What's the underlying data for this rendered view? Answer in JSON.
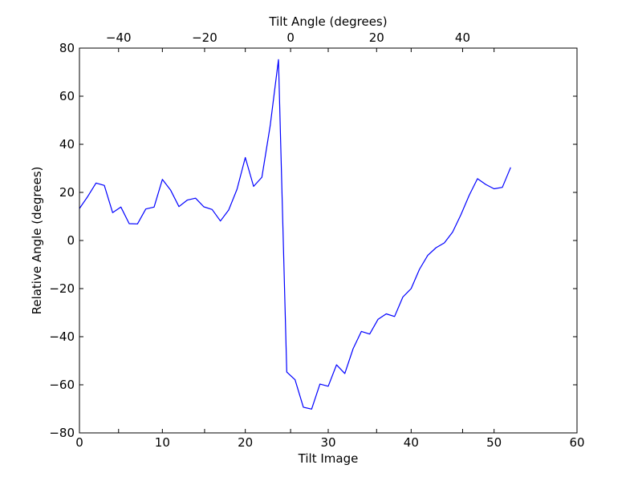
{
  "chart_data": {
    "type": "line",
    "xlabel": "Tilt Image",
    "ylabel": "Relative Angle (degrees)",
    "top_xlabel": "Tilt Angle (degrees)",
    "xlim": [
      0,
      60
    ],
    "ylim": [
      -80,
      80
    ],
    "top_xlim": [
      -49.1,
      66.6
    ],
    "x_ticks": [
      0,
      10,
      20,
      30,
      40,
      50,
      60
    ],
    "y_ticks": [
      -80,
      -60,
      -40,
      -20,
      0,
      20,
      40,
      60,
      80
    ],
    "top_x_ticks": [
      -40,
      -20,
      0,
      20,
      40
    ],
    "x_tick_labels": [
      "0",
      "10",
      "20",
      "30",
      "40",
      "50",
      "60"
    ],
    "y_tick_labels": [
      "−80",
      "−60",
      "−40",
      "−20",
      "0",
      "20",
      "40",
      "60",
      "80"
    ],
    "top_x_tick_labels": [
      "−40",
      "−20",
      "0",
      "20",
      "40"
    ],
    "grid": false,
    "series": [
      {
        "color": "#0000ff",
        "x": [
          0,
          1,
          2,
          3,
          4,
          5,
          6,
          7,
          8,
          9,
          10,
          11,
          12,
          13,
          14,
          15,
          16,
          17,
          18,
          19,
          20,
          21,
          22,
          23,
          24,
          25,
          26,
          27,
          28,
          29,
          30,
          31,
          32,
          33,
          34,
          35,
          36,
          37,
          38,
          39,
          40,
          41,
          42,
          43,
          44,
          45,
          46,
          47,
          48,
          49,
          50,
          51,
          52
        ],
        "y": [
          13.3,
          18.3,
          23.9,
          22.9,
          11.6,
          13.9,
          7.0,
          6.9,
          13.1,
          13.9,
          25.4,
          20.9,
          14.1,
          16.8,
          17.6,
          14.0,
          12.9,
          8.1,
          12.7,
          21.3,
          34.5,
          22.5,
          26.3,
          47.7,
          75.2,
          -54.7,
          -57.9,
          -69.3,
          -70.1,
          -59.7,
          -60.6,
          -51.7,
          -55.3,
          -45.0,
          -37.8,
          -38.9,
          -32.8,
          -30.5,
          -31.6,
          -23.5,
          -20.0,
          -12.0,
          -6.2,
          -3.0,
          -1.0,
          3.5,
          10.7,
          18.8,
          25.7,
          23.3,
          21.5,
          22.1,
          30.4
        ]
      }
    ]
  }
}
